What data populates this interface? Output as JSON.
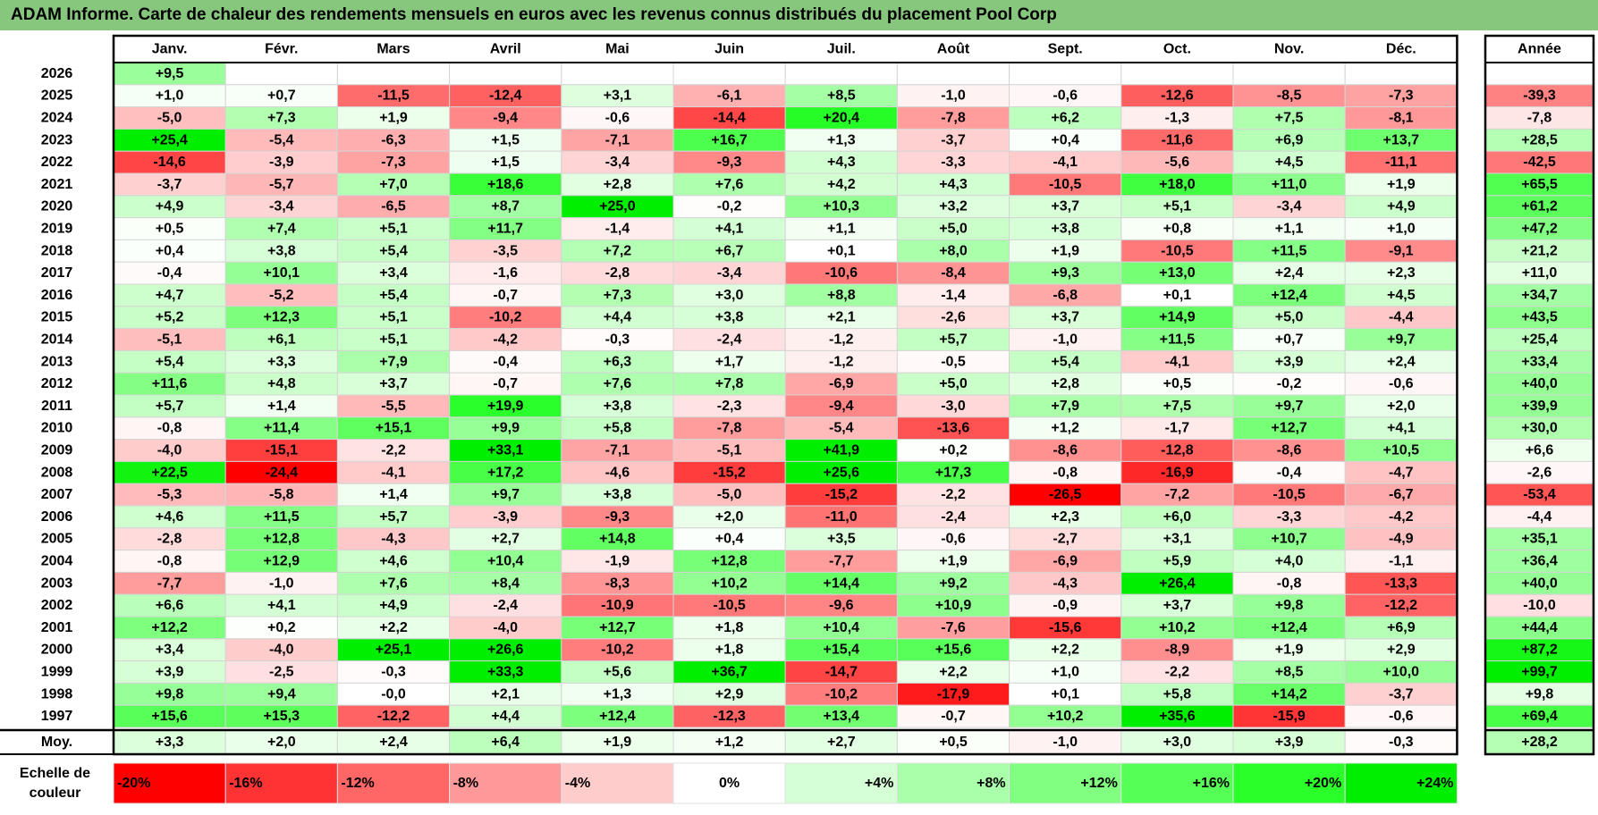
{
  "title": "ADAM Informe. Carte de chaleur des rendements mensuels en euros avec les revenus connus distribués du placement Pool Corp",
  "chart_data": {
    "type": "heatmap",
    "value_unit": "%",
    "months": [
      "Janv.",
      "Févr.",
      "Mars",
      "Avril",
      "Mai",
      "Juin",
      "Juil.",
      "Août",
      "Sept.",
      "Oct.",
      "Nov.",
      "Déc."
    ],
    "year_column_label": "Année",
    "average_row_label": "Moy.",
    "rows": [
      {
        "year": "2026",
        "values": [
          9.5,
          null,
          null,
          null,
          null,
          null,
          null,
          null,
          null,
          null,
          null,
          null
        ],
        "labels": [
          "+9,5",
          "",
          "",
          "",
          "",
          "",
          "",
          "",
          "",
          "",
          "",
          ""
        ],
        "annual": null,
        "annual_label": ""
      },
      {
        "year": "2025",
        "values": [
          1.0,
          0.7,
          -11.5,
          -12.4,
          3.1,
          -6.1,
          8.5,
          -1.0,
          -0.6,
          -12.6,
          -8.5,
          -7.3
        ],
        "labels": [
          "+1,0",
          "+0,7",
          "-11,5",
          "-12,4",
          "+3,1",
          "-6,1",
          "+8,5",
          "-1,0",
          "-0,6",
          "-12,6",
          "-8,5",
          "-7,3"
        ],
        "annual": -39.3,
        "annual_label": "-39,3"
      },
      {
        "year": "2024",
        "values": [
          -5.0,
          7.3,
          1.9,
          -9.4,
          -0.6,
          -14.4,
          20.4,
          -7.8,
          6.2,
          -1.3,
          7.5,
          -8.1
        ],
        "labels": [
          "-5,0",
          "+7,3",
          "+1,9",
          "-9,4",
          "-0,6",
          "-14,4",
          "+20,4",
          "-7,8",
          "+6,2",
          "-1,3",
          "+7,5",
          "-8,1"
        ],
        "annual": -7.8,
        "annual_label": "-7,8"
      },
      {
        "year": "2023",
        "values": [
          25.4,
          -5.4,
          -6.3,
          1.5,
          -7.1,
          16.7,
          1.3,
          -3.7,
          0.4,
          -11.6,
          6.9,
          13.7
        ],
        "labels": [
          "+25,4",
          "-5,4",
          "-6,3",
          "+1,5",
          "-7,1",
          "+16,7",
          "+1,3",
          "-3,7",
          "+0,4",
          "-11,6",
          "+6,9",
          "+13,7"
        ],
        "annual": 28.5,
        "annual_label": "+28,5"
      },
      {
        "year": "2022",
        "values": [
          -14.6,
          -3.9,
          -7.3,
          1.5,
          -3.4,
          -9.3,
          4.3,
          -3.3,
          -4.1,
          -5.6,
          4.5,
          -11.1
        ],
        "labels": [
          "-14,6",
          "-3,9",
          "-7,3",
          "+1,5",
          "-3,4",
          "-9,3",
          "+4,3",
          "-3,3",
          "-4,1",
          "-5,6",
          "+4,5",
          "-11,1"
        ],
        "annual": -42.5,
        "annual_label": "-42,5"
      },
      {
        "year": "2021",
        "values": [
          -3.7,
          -5.7,
          7.0,
          18.6,
          2.8,
          7.6,
          4.2,
          4.3,
          -10.5,
          18.0,
          11.0,
          1.9
        ],
        "labels": [
          "-3,7",
          "-5,7",
          "+7,0",
          "+18,6",
          "+2,8",
          "+7,6",
          "+4,2",
          "+4,3",
          "-10,5",
          "+18,0",
          "+11,0",
          "+1,9"
        ],
        "annual": 65.5,
        "annual_label": "+65,5"
      },
      {
        "year": "2020",
        "values": [
          4.9,
          -3.4,
          -6.5,
          8.7,
          25.0,
          -0.2,
          10.3,
          3.2,
          3.7,
          5.1,
          -3.4,
          4.9
        ],
        "labels": [
          "+4,9",
          "-3,4",
          "-6,5",
          "+8,7",
          "+25,0",
          "-0,2",
          "+10,3",
          "+3,2",
          "+3,7",
          "+5,1",
          "-3,4",
          "+4,9"
        ],
        "annual": 61.2,
        "annual_label": "+61,2"
      },
      {
        "year": "2019",
        "values": [
          0.5,
          7.4,
          5.1,
          11.7,
          -1.4,
          4.1,
          1.1,
          5.0,
          3.8,
          0.8,
          1.1,
          1.0
        ],
        "labels": [
          "+0,5",
          "+7,4",
          "+5,1",
          "+11,7",
          "-1,4",
          "+4,1",
          "+1,1",
          "+5,0",
          "+3,8",
          "+0,8",
          "+1,1",
          "+1,0"
        ],
        "annual": 47.2,
        "annual_label": "+47,2"
      },
      {
        "year": "2018",
        "values": [
          0.4,
          3.8,
          5.4,
          -3.5,
          7.2,
          6.7,
          0.1,
          8.0,
          1.9,
          -10.5,
          11.5,
          -9.1
        ],
        "labels": [
          "+0,4",
          "+3,8",
          "+5,4",
          "-3,5",
          "+7,2",
          "+6,7",
          "+0,1",
          "+8,0",
          "+1,9",
          "-10,5",
          "+11,5",
          "-9,1"
        ],
        "annual": 21.2,
        "annual_label": "+21,2"
      },
      {
        "year": "2017",
        "values": [
          -0.4,
          10.1,
          3.4,
          -1.6,
          -2.8,
          -3.4,
          -10.6,
          -8.4,
          9.3,
          13.0,
          2.4,
          2.3
        ],
        "labels": [
          "-0,4",
          "+10,1",
          "+3,4",
          "-1,6",
          "-2,8",
          "-3,4",
          "-10,6",
          "-8,4",
          "+9,3",
          "+13,0",
          "+2,4",
          "+2,3"
        ],
        "annual": 11.0,
        "annual_label": "+11,0"
      },
      {
        "year": "2016",
        "values": [
          4.7,
          -5.2,
          5.4,
          -0.7,
          7.3,
          3.0,
          8.8,
          -1.4,
          -6.8,
          0.1,
          12.4,
          4.5
        ],
        "labels": [
          "+4,7",
          "-5,2",
          "+5,4",
          "-0,7",
          "+7,3",
          "+3,0",
          "+8,8",
          "-1,4",
          "-6,8",
          "+0,1",
          "+12,4",
          "+4,5"
        ],
        "annual": 34.7,
        "annual_label": "+34,7"
      },
      {
        "year": "2015",
        "values": [
          5.2,
          12.3,
          5.1,
          -10.2,
          4.4,
          3.8,
          2.1,
          -2.6,
          3.7,
          14.9,
          5.0,
          -4.4
        ],
        "labels": [
          "+5,2",
          "+12,3",
          "+5,1",
          "-10,2",
          "+4,4",
          "+3,8",
          "+2,1",
          "-2,6",
          "+3,7",
          "+14,9",
          "+5,0",
          "-4,4"
        ],
        "annual": 43.5,
        "annual_label": "+43,5"
      },
      {
        "year": "2014",
        "values": [
          -5.1,
          6.1,
          5.1,
          -4.2,
          -0.3,
          -2.4,
          -1.2,
          5.7,
          -1.0,
          11.5,
          0.7,
          9.7
        ],
        "labels": [
          "-5,1",
          "+6,1",
          "+5,1",
          "-4,2",
          "-0,3",
          "-2,4",
          "-1,2",
          "+5,7",
          "-1,0",
          "+11,5",
          "+0,7",
          "+9,7"
        ],
        "annual": 25.4,
        "annual_label": "+25,4"
      },
      {
        "year": "2013",
        "values": [
          5.4,
          3.3,
          7.9,
          -0.4,
          6.3,
          1.7,
          -1.2,
          -0.5,
          5.4,
          -4.1,
          3.9,
          2.4
        ],
        "labels": [
          "+5,4",
          "+3,3",
          "+7,9",
          "-0,4",
          "+6,3",
          "+1,7",
          "-1,2",
          "-0,5",
          "+5,4",
          "-4,1",
          "+3,9",
          "+2,4"
        ],
        "annual": 33.4,
        "annual_label": "+33,4"
      },
      {
        "year": "2012",
        "values": [
          11.6,
          4.8,
          3.7,
          -0.7,
          7.6,
          7.8,
          -6.9,
          5.0,
          2.8,
          0.5,
          -0.2,
          -0.6
        ],
        "labels": [
          "+11,6",
          "+4,8",
          "+3,7",
          "-0,7",
          "+7,6",
          "+7,8",
          "-6,9",
          "+5,0",
          "+2,8",
          "+0,5",
          "-0,2",
          "-0,6"
        ],
        "annual": 40.0,
        "annual_label": "+40,0"
      },
      {
        "year": "2011",
        "values": [
          5.7,
          1.4,
          -5.5,
          19.9,
          3.8,
          -2.3,
          -9.4,
          -3.0,
          7.9,
          7.5,
          9.7,
          2.0
        ],
        "labels": [
          "+5,7",
          "+1,4",
          "-5,5",
          "+19,9",
          "+3,8",
          "-2,3",
          "-9,4",
          "-3,0",
          "+7,9",
          "+7,5",
          "+9,7",
          "+2,0"
        ],
        "annual": 39.9,
        "annual_label": "+39,9"
      },
      {
        "year": "2010",
        "values": [
          -0.8,
          11.4,
          15.1,
          9.9,
          5.8,
          -7.8,
          -5.4,
          -13.6,
          1.2,
          -1.7,
          12.7,
          4.1
        ],
        "labels": [
          "-0,8",
          "+11,4",
          "+15,1",
          "+9,9",
          "+5,8",
          "-7,8",
          "-5,4",
          "-13,6",
          "+1,2",
          "-1,7",
          "+12,7",
          "+4,1"
        ],
        "annual": 30.0,
        "annual_label": "+30,0"
      },
      {
        "year": "2009",
        "values": [
          -4.0,
          -15.1,
          -2.2,
          33.1,
          -7.1,
          -5.1,
          41.9,
          0.2,
          -8.6,
          -12.8,
          -8.6,
          10.5
        ],
        "labels": [
          "-4,0",
          "-15,1",
          "-2,2",
          "+33,1",
          "-7,1",
          "-5,1",
          "+41,9",
          "+0,2",
          "-8,6",
          "-12,8",
          "-8,6",
          "+10,5"
        ],
        "annual": 6.6,
        "annual_label": "+6,6"
      },
      {
        "year": "2008",
        "values": [
          22.5,
          -24.4,
          -4.1,
          17.2,
          -4.6,
          -15.2,
          25.6,
          17.3,
          -0.8,
          -16.9,
          -0.4,
          -4.7
        ],
        "labels": [
          "+22,5",
          "-24,4",
          "-4,1",
          "+17,2",
          "-4,6",
          "-15,2",
          "+25,6",
          "+17,3",
          "-0,8",
          "-16,9",
          "-0,4",
          "-4,7"
        ],
        "annual": -2.6,
        "annual_label": "-2,6"
      },
      {
        "year": "2007",
        "values": [
          -5.3,
          -5.8,
          1.4,
          9.7,
          3.8,
          -5.0,
          -15.2,
          -2.2,
          -26.5,
          -7.2,
          -10.5,
          -6.7
        ],
        "labels": [
          "-5,3",
          "-5,8",
          "+1,4",
          "+9,7",
          "+3,8",
          "-5,0",
          "-15,2",
          "-2,2",
          "-26,5",
          "-7,2",
          "-10,5",
          "-6,7"
        ],
        "annual": -53.4,
        "annual_label": "-53,4"
      },
      {
        "year": "2006",
        "values": [
          4.6,
          11.5,
          5.7,
          -3.9,
          -9.3,
          2.0,
          -11.0,
          -2.4,
          2.3,
          6.0,
          -3.3,
          -4.2
        ],
        "labels": [
          "+4,6",
          "+11,5",
          "+5,7",
          "-3,9",
          "-9,3",
          "+2,0",
          "-11,0",
          "-2,4",
          "+2,3",
          "+6,0",
          "-3,3",
          "-4,2"
        ],
        "annual": -4.4,
        "annual_label": "-4,4"
      },
      {
        "year": "2005",
        "values": [
          -2.8,
          12.8,
          -4.3,
          2.7,
          14.8,
          0.4,
          3.5,
          -0.6,
          -2.7,
          3.1,
          10.7,
          -4.9
        ],
        "labels": [
          "-2,8",
          "+12,8",
          "-4,3",
          "+2,7",
          "+14,8",
          "+0,4",
          "+3,5",
          "-0,6",
          "-2,7",
          "+3,1",
          "+10,7",
          "-4,9"
        ],
        "annual": 35.1,
        "annual_label": "+35,1"
      },
      {
        "year": "2004",
        "values": [
          -0.8,
          12.9,
          4.6,
          10.4,
          -1.9,
          12.8,
          -7.7,
          1.9,
          -6.9,
          5.9,
          4.0,
          -1.1
        ],
        "labels": [
          "-0,8",
          "+12,9",
          "+4,6",
          "+10,4",
          "-1,9",
          "+12,8",
          "-7,7",
          "+1,9",
          "-6,9",
          "+5,9",
          "+4,0",
          "-1,1"
        ],
        "annual": 36.4,
        "annual_label": "+36,4"
      },
      {
        "year": "2003",
        "values": [
          -7.7,
          -1.0,
          7.6,
          8.4,
          -8.3,
          10.2,
          14.4,
          9.2,
          -4.3,
          26.4,
          -0.8,
          -13.3
        ],
        "labels": [
          "-7,7",
          "-1,0",
          "+7,6",
          "+8,4",
          "-8,3",
          "+10,2",
          "+14,4",
          "+9,2",
          "-4,3",
          "+26,4",
          "-0,8",
          "-13,3"
        ],
        "annual": 40.0,
        "annual_label": "+40,0"
      },
      {
        "year": "2002",
        "values": [
          6.6,
          4.1,
          4.9,
          -2.4,
          -10.9,
          -10.5,
          -9.6,
          10.9,
          -0.9,
          3.7,
          9.8,
          -12.2
        ],
        "labels": [
          "+6,6",
          "+4,1",
          "+4,9",
          "-2,4",
          "-10,9",
          "-10,5",
          "-9,6",
          "+10,9",
          "-0,9",
          "+3,7",
          "+9,8",
          "-12,2"
        ],
        "annual": -10.0,
        "annual_label": "-10,0"
      },
      {
        "year": "2001",
        "values": [
          12.2,
          0.2,
          2.2,
          -4.0,
          12.7,
          1.8,
          10.4,
          -7.6,
          -15.6,
          10.2,
          12.4,
          6.9
        ],
        "labels": [
          "+12,2",
          "+0,2",
          "+2,2",
          "-4,0",
          "+12,7",
          "+1,8",
          "+10,4",
          "-7,6",
          "-15,6",
          "+10,2",
          "+12,4",
          "+6,9"
        ],
        "annual": 44.4,
        "annual_label": "+44,4"
      },
      {
        "year": "2000",
        "values": [
          3.4,
          -4.0,
          25.1,
          26.6,
          -10.2,
          1.8,
          15.4,
          15.6,
          2.2,
          -8.9,
          1.9,
          2.9
        ],
        "labels": [
          "+3,4",
          "-4,0",
          "+25,1",
          "+26,6",
          "-10,2",
          "+1,8",
          "+15,4",
          "+15,6",
          "+2,2",
          "-8,9",
          "+1,9",
          "+2,9"
        ],
        "annual": 87.2,
        "annual_label": "+87,2"
      },
      {
        "year": "1999",
        "values": [
          3.9,
          -2.5,
          -0.3,
          33.3,
          5.6,
          36.7,
          -14.7,
          2.2,
          1.0,
          -2.2,
          8.5,
          10.0
        ],
        "labels": [
          "+3,9",
          "-2,5",
          "-0,3",
          "+33,3",
          "+5,6",
          "+36,7",
          "-14,7",
          "+2,2",
          "+1,0",
          "-2,2",
          "+8,5",
          "+10,0"
        ],
        "annual": 99.7,
        "annual_label": "+99,7"
      },
      {
        "year": "1998",
        "values": [
          9.8,
          9.4,
          -0.0,
          2.1,
          1.3,
          2.9,
          -10.2,
          -17.9,
          0.1,
          5.8,
          14.2,
          -3.7
        ],
        "labels": [
          "+9,8",
          "+9,4",
          "-0,0",
          "+2,1",
          "+1,3",
          "+2,9",
          "-10,2",
          "-17,9",
          "+0,1",
          "+5,8",
          "+14,2",
          "-3,7"
        ],
        "annual": 9.8,
        "annual_label": "+9,8"
      },
      {
        "year": "1997",
        "values": [
          15.6,
          15.3,
          -12.2,
          4.4,
          12.4,
          -12.3,
          13.4,
          -0.7,
          10.2,
          35.6,
          -15.9,
          -0.6
        ],
        "labels": [
          "+15,6",
          "+15,3",
          "-12,2",
          "+4,4",
          "+12,4",
          "-12,3",
          "+13,4",
          "-0,7",
          "+10,2",
          "+35,6",
          "-15,9",
          "-0,6"
        ],
        "annual": 69.4,
        "annual_label": "+69,4"
      }
    ],
    "average": {
      "values": [
        3.3,
        2.0,
        2.4,
        6.4,
        1.9,
        1.2,
        2.7,
        0.5,
        -1.0,
        3.0,
        3.9,
        -0.3
      ],
      "labels": [
        "+3,3",
        "+2,0",
        "+2,4",
        "+6,4",
        "+1,9",
        "+1,2",
        "+2,7",
        "+0,5",
        "-1,0",
        "+3,0",
        "+3,9",
        "-0,3"
      ],
      "annual": 28.2,
      "annual_label": "+28,2"
    },
    "color_scale": {
      "label_line1": "Echelle de",
      "label_line2": "couleur",
      "stops": [
        {
          "value": -20,
          "label": "-20%",
          "color": "#ff0000"
        },
        {
          "value": -16,
          "label": "-16%",
          "color": "#ff3333"
        },
        {
          "value": -12,
          "label": "-12%",
          "color": "#ff6666"
        },
        {
          "value": -8,
          "label": "-8%",
          "color": "#ff9999"
        },
        {
          "value": -4,
          "label": "-4%",
          "color": "#ffcccc"
        },
        {
          "value": 0,
          "label": "0%",
          "color": "#ffffff"
        },
        {
          "value": 4,
          "label": "+4%",
          "color": "#d5ffd5"
        },
        {
          "value": 8,
          "label": "+8%",
          "color": "#aaffaa"
        },
        {
          "value": 12,
          "label": "+12%",
          "color": "#80ff80"
        },
        {
          "value": 16,
          "label": "+16%",
          "color": "#55ff55"
        },
        {
          "value": 20,
          "label": "+20%",
          "color": "#2aff2a"
        },
        {
          "value": 24,
          "label": "+24%",
          "color": "#00ee00"
        }
      ]
    }
  }
}
